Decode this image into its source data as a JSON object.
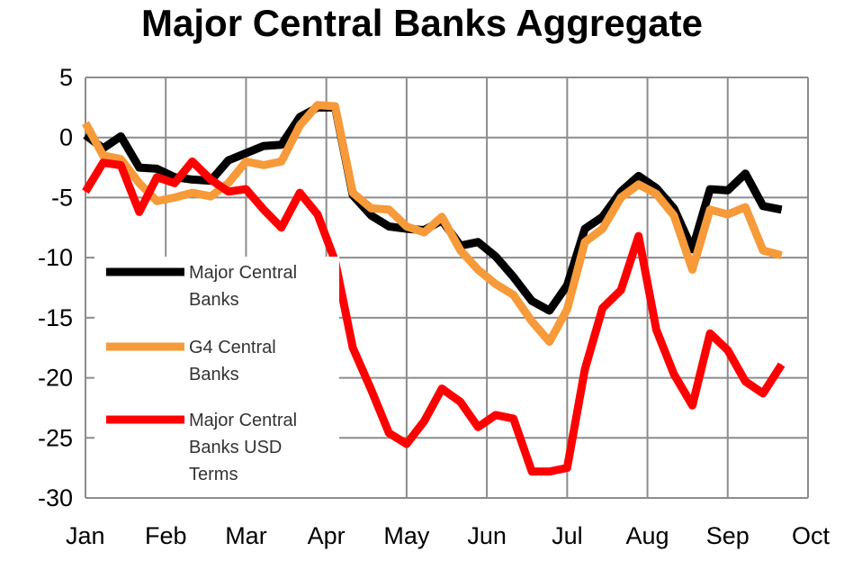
{
  "chart_data": {
    "type": "line",
    "title": "Major Central Banks Aggregate",
    "xlabel": "",
    "ylabel": "",
    "ylim": [
      -30,
      5
    ],
    "yticks": [
      5,
      0,
      -5,
      -10,
      -15,
      -20,
      -25,
      -30
    ],
    "xlim": [
      0,
      9
    ],
    "x_ticks": [
      {
        "label": "Jan",
        "x": 0
      },
      {
        "label": "Feb",
        "x": 1
      },
      {
        "label": "Mar",
        "x": 2
      },
      {
        "label": "Apr",
        "x": 3
      },
      {
        "label": "May",
        "x": 4
      },
      {
        "label": "Jun",
        "x": 5
      },
      {
        "label": "Jul",
        "x": 6
      },
      {
        "label": "Aug",
        "x": 7
      },
      {
        "label": "Sep",
        "x": 8
      },
      {
        "label": "Oct",
        "x": 9
      }
    ],
    "grid": true,
    "legend_position": "lower-left",
    "series": [
      {
        "name": "Major Central Banks",
        "color": "#000000",
        "points": [
          [
            0,
            0.2
          ],
          [
            0.22,
            -0.9
          ],
          [
            0.44,
            0.1
          ],
          [
            0.67,
            -2.5
          ],
          [
            0.89,
            -2.6
          ],
          [
            1.11,
            -3.3
          ],
          [
            1.33,
            -3.5
          ],
          [
            1.56,
            -3.6
          ],
          [
            1.78,
            -1.9
          ],
          [
            2.0,
            -1.3
          ],
          [
            2.22,
            -0.7
          ],
          [
            2.44,
            -0.6
          ],
          [
            2.67,
            1.7
          ],
          [
            2.89,
            2.5
          ],
          [
            3.11,
            2.5
          ],
          [
            3.33,
            -4.8
          ],
          [
            3.56,
            -6.5
          ],
          [
            3.78,
            -7.4
          ],
          [
            4.0,
            -7.6
          ],
          [
            4.22,
            -7.7
          ],
          [
            4.44,
            -6.9
          ],
          [
            4.67,
            -9.0
          ],
          [
            4.89,
            -8.7
          ],
          [
            5.11,
            -9.9
          ],
          [
            5.33,
            -11.6
          ],
          [
            5.56,
            -13.6
          ],
          [
            5.78,
            -14.4
          ],
          [
            6.0,
            -12.3
          ],
          [
            6.22,
            -7.6
          ],
          [
            6.44,
            -6.6
          ],
          [
            6.67,
            -4.5
          ],
          [
            6.89,
            -3.2
          ],
          [
            7.11,
            -4.2
          ],
          [
            7.33,
            -5.9
          ],
          [
            7.56,
            -9.3
          ],
          [
            7.78,
            -4.3
          ],
          [
            8.0,
            -4.4
          ],
          [
            8.22,
            -3.0
          ],
          [
            8.44,
            -5.7
          ],
          [
            8.67,
            -6.0
          ]
        ]
      },
      {
        "name": "G4 Central Banks",
        "color": "#f79a39",
        "points": [
          [
            0,
            1.2
          ],
          [
            0.22,
            -1.5
          ],
          [
            0.44,
            -1.8
          ],
          [
            0.67,
            -3.8
          ],
          [
            0.89,
            -5.3
          ],
          [
            1.11,
            -5.0
          ],
          [
            1.33,
            -4.6
          ],
          [
            1.56,
            -4.9
          ],
          [
            1.78,
            -3.8
          ],
          [
            2.0,
            -2.0
          ],
          [
            2.22,
            -2.3
          ],
          [
            2.44,
            -2.0
          ],
          [
            2.67,
            1.0
          ],
          [
            2.89,
            2.7
          ],
          [
            3.11,
            2.6
          ],
          [
            3.33,
            -4.6
          ],
          [
            3.56,
            -5.9
          ],
          [
            3.78,
            -6.0
          ],
          [
            4.0,
            -7.4
          ],
          [
            4.22,
            -7.9
          ],
          [
            4.44,
            -6.6
          ],
          [
            4.67,
            -9.4
          ],
          [
            4.89,
            -11.0
          ],
          [
            5.11,
            -12.2
          ],
          [
            5.33,
            -13.1
          ],
          [
            5.56,
            -15.3
          ],
          [
            5.78,
            -17.0
          ],
          [
            6.0,
            -14.3
          ],
          [
            6.22,
            -8.7
          ],
          [
            6.44,
            -7.6
          ],
          [
            6.67,
            -5.0
          ],
          [
            6.89,
            -3.9
          ],
          [
            7.11,
            -4.7
          ],
          [
            7.33,
            -6.5
          ],
          [
            7.56,
            -11.0
          ],
          [
            7.78,
            -6.0
          ],
          [
            8.0,
            -6.4
          ],
          [
            8.22,
            -5.8
          ],
          [
            8.44,
            -9.4
          ],
          [
            8.67,
            -9.8
          ]
        ]
      },
      {
        "name": "Major Central Banks USD Terms",
        "color": "#ff0000",
        "points": [
          [
            0,
            -4.5
          ],
          [
            0.22,
            -2.1
          ],
          [
            0.44,
            -2.3
          ],
          [
            0.67,
            -6.2
          ],
          [
            0.89,
            -3.3
          ],
          [
            1.11,
            -3.8
          ],
          [
            1.33,
            -2.0
          ],
          [
            1.56,
            -3.5
          ],
          [
            1.78,
            -4.5
          ],
          [
            2.0,
            -4.3
          ],
          [
            2.22,
            -6.0
          ],
          [
            2.44,
            -7.5
          ],
          [
            2.67,
            -4.6
          ],
          [
            2.89,
            -6.4
          ],
          [
            3.11,
            -10.3
          ],
          [
            3.33,
            -17.5
          ],
          [
            3.56,
            -21.0
          ],
          [
            3.78,
            -24.6
          ],
          [
            4.0,
            -25.5
          ],
          [
            4.22,
            -23.6
          ],
          [
            4.44,
            -20.9
          ],
          [
            4.67,
            -22.0
          ],
          [
            4.89,
            -24.1
          ],
          [
            5.11,
            -23.1
          ],
          [
            5.33,
            -23.4
          ],
          [
            5.56,
            -27.8
          ],
          [
            5.78,
            -27.8
          ],
          [
            6.0,
            -27.5
          ],
          [
            6.22,
            -19.3
          ],
          [
            6.44,
            -14.2
          ],
          [
            6.67,
            -12.7
          ],
          [
            6.89,
            -8.2
          ],
          [
            7.11,
            -16.0
          ],
          [
            7.33,
            -19.7
          ],
          [
            7.56,
            -22.3
          ],
          [
            7.78,
            -16.3
          ],
          [
            8.0,
            -17.7
          ],
          [
            8.22,
            -20.3
          ],
          [
            8.44,
            -21.3
          ],
          [
            8.67,
            -18.9
          ]
        ]
      }
    ],
    "legend": [
      {
        "lines": [
          "Major Central",
          "Banks"
        ],
        "color": "#000000"
      },
      {
        "lines": [
          "G4 Central",
          "Banks"
        ],
        "color": "#f79a39"
      },
      {
        "lines": [
          "Major Central",
          "Banks USD",
          "Terms"
        ],
        "color": "#ff0000"
      }
    ]
  }
}
